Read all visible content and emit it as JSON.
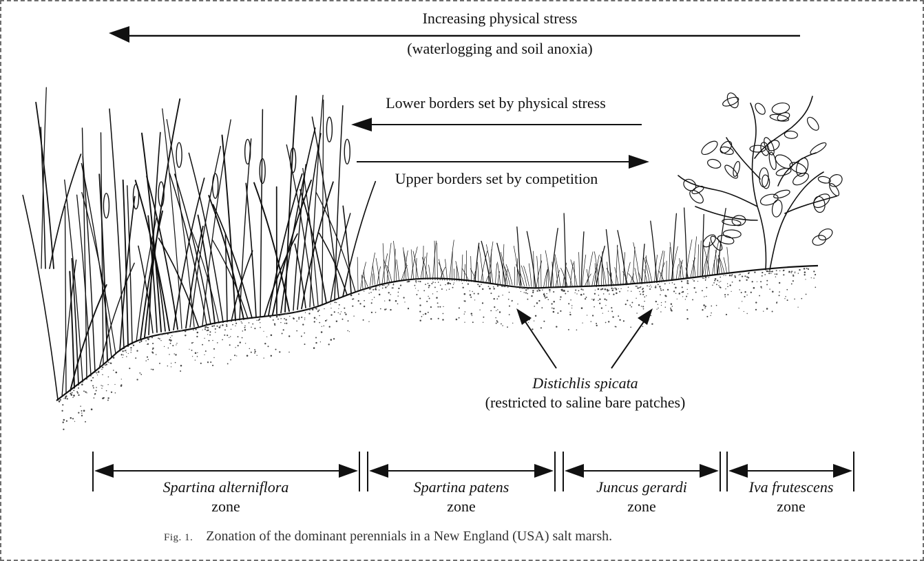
{
  "diagram": {
    "arrows": {
      "stress_title": "Increasing physical stress",
      "stress_subtitle": "(waterlogging and soil anoxia)",
      "lower_borders": "Lower borders set by physical stress",
      "upper_borders": "Upper borders set by competition"
    },
    "distichlis": {
      "species": "Distichlis spicata",
      "note": "(restricted to saline bare patches)"
    },
    "zones": [
      {
        "species": "Spartina alterniflora",
        "suffix": "zone"
      },
      {
        "species": "Spartina patens",
        "suffix": "zone"
      },
      {
        "species": "Juncus gerardi",
        "suffix": "zone"
      },
      {
        "species": "Iva frutescens",
        "suffix": "zone"
      }
    ],
    "caption": {
      "fig_small_caps": "Fig. 1.",
      "text": "Zonation of the dominant perennials in a New England (USA) salt marsh."
    }
  }
}
